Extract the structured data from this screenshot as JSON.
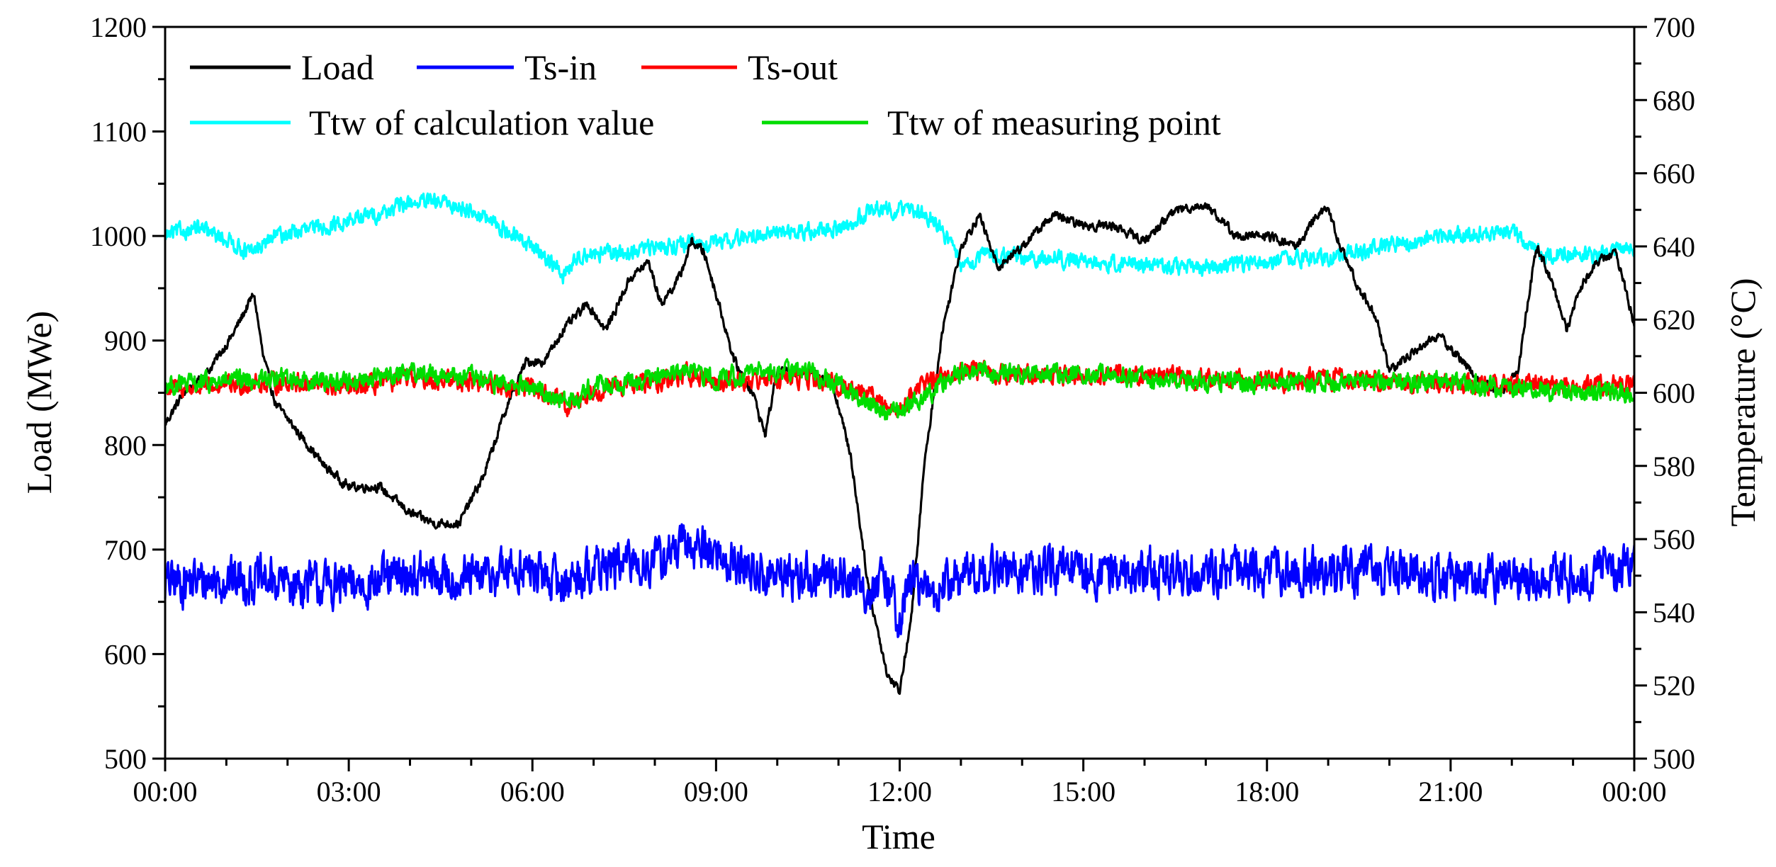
{
  "chart_data": {
    "type": "line",
    "title": "",
    "xlabel": "Time",
    "ylabel_left": "Load (MWe)",
    "ylabel_right": "Temperature (°C)",
    "xlim_hours": [
      0,
      24
    ],
    "ylim_left": [
      500,
      1200
    ],
    "ylim_right": [
      500,
      700
    ],
    "x_ticks": [
      0,
      3,
      6,
      9,
      12,
      15,
      18,
      21,
      24
    ],
    "x_tick_labels": [
      "00:00",
      "03:00",
      "06:00",
      "09:00",
      "12:00",
      "15:00",
      "18:00",
      "21:00",
      "00:00"
    ],
    "y_left_ticks": [
      500,
      600,
      700,
      800,
      900,
      1000,
      1100,
      1200
    ],
    "y_left_tick_labels": [
      "500",
      "600",
      "700",
      "800",
      "900",
      "1000",
      "1100",
      "1200"
    ],
    "y_right_ticks": [
      500,
      520,
      540,
      560,
      580,
      600,
      620,
      640,
      660,
      680,
      700
    ],
    "y_right_tick_labels": [
      "500",
      "520",
      "540",
      "560",
      "580",
      "600",
      "620",
      "640",
      "660",
      "680",
      "700"
    ],
    "legend_position": "top-left",
    "series": [
      {
        "name": "Load",
        "axis": "left",
        "color": "#000000",
        "noise": 5,
        "x": [
          0,
          0.3,
          0.7,
          1.1,
          1.45,
          1.6,
          1.8,
          2.2,
          2.6,
          3.0,
          3.5,
          4.0,
          4.4,
          4.8,
          5.2,
          5.6,
          5.9,
          6.2,
          6.5,
          6.9,
          7.2,
          7.6,
          7.9,
          8.1,
          8.4,
          8.6,
          8.8,
          9.0,
          9.3,
          9.6,
          9.8,
          10.0,
          10.3,
          10.6,
          10.9,
          11.2,
          11.5,
          11.8,
          12.0,
          12.2,
          12.4,
          12.7,
          13.0,
          13.3,
          13.6,
          14.0,
          14.5,
          15.0,
          15.5,
          16.0,
          16.5,
          17.0,
          17.5,
          18.0,
          18.5,
          18.8,
          19.0,
          19.2,
          19.5,
          19.8,
          20.0,
          20.4,
          20.8,
          21.2,
          21.5,
          21.8,
          22.1,
          22.4,
          22.6,
          22.9,
          23.1,
          23.4,
          23.7,
          24.0
        ],
        "values": [
          820,
          850,
          870,
          905,
          945,
          885,
          840,
          810,
          780,
          760,
          760,
          735,
          725,
          725,
          770,
          840,
          880,
          880,
          910,
          935,
          910,
          960,
          975,
          935,
          960,
          995,
          985,
          945,
          880,
          850,
          810,
          870,
          870,
          870,
          860,
          790,
          660,
          580,
          565,
          640,
          780,
          910,
          990,
          1020,
          970,
          990,
          1020,
          1010,
          1010,
          995,
          1025,
          1030,
          1000,
          1000,
          990,
          1020,
          1025,
          990,
          950,
          920,
          870,
          890,
          905,
          880,
          860,
          850,
          870,
          990,
          965,
          910,
          950,
          975,
          985,
          915
        ]
      },
      {
        "name": "Ts-in",
        "axis": "right",
        "color": "#0000ff",
        "noise": 7,
        "x": [
          0,
          1.0,
          2.0,
          3.0,
          4.0,
          5.0,
          5.8,
          6.5,
          7.0,
          8.0,
          8.5,
          8.8,
          9.2,
          9.8,
          10.5,
          11.0,
          11.5,
          11.8,
          12.0,
          12.2,
          12.5,
          12.8,
          13.2,
          14.0,
          15.0,
          16.0,
          17.0,
          18.0,
          19.0,
          20.0,
          21.0,
          22.0,
          23.0,
          24.0
        ],
        "values": [
          548,
          549,
          548,
          547,
          550,
          549,
          552,
          548,
          552,
          554,
          558,
          558,
          554,
          550,
          550,
          550,
          546,
          548,
          538,
          550,
          544,
          548,
          551,
          551,
          551,
          551,
          551,
          551,
          551,
          551,
          550,
          549,
          550,
          553
        ]
      },
      {
        "name": "Ts-out",
        "axis": "right",
        "color": "#ff0000",
        "noise": 3,
        "x": [
          0,
          1.0,
          2.0,
          3.0,
          4.0,
          5.0,
          6.0,
          6.4,
          6.6,
          7.0,
          8.0,
          8.5,
          9.0,
          10.0,
          10.5,
          11.0,
          11.5,
          11.7,
          12.0,
          12.3,
          12.6,
          13.0,
          14.0,
          15.0,
          16.0,
          17.0,
          18.0,
          19.0,
          20.0,
          21.0,
          22.0,
          23.0,
          24.0
        ],
        "values": [
          601,
          602,
          603,
          601,
          604,
          603,
          601,
          598,
          596,
          601,
          603,
          605,
          603,
          604,
          604,
          602,
          600,
          597,
          595,
          602,
          604,
          606,
          605,
          605,
          605,
          604,
          603,
          604,
          603,
          602,
          602,
          602,
          602
        ]
      },
      {
        "name": "Ttw of calculation value",
        "axis": "right",
        "color": "#00ffff",
        "noise": 2.5,
        "x": [
          0,
          0.5,
          1.0,
          1.4,
          1.8,
          2.5,
          3.0,
          3.5,
          4.0,
          4.5,
          5.0,
          5.5,
          6.0,
          6.3,
          6.5,
          6.8,
          7.5,
          8.0,
          9.0,
          10.0,
          10.5,
          11.0,
          11.3,
          11.6,
          11.9,
          12.2,
          12.5,
          12.8,
          13.0,
          13.4,
          14.0,
          15.0,
          16.0,
          17.0,
          18.0,
          19.0,
          20.0,
          21.0,
          22.0,
          22.3,
          22.6,
          23.0,
          23.5,
          24.0
        ],
        "values": [
          643,
          645,
          642,
          638,
          643,
          645,
          647,
          649,
          652,
          652,
          650,
          645,
          640,
          636,
          632,
          638,
          638,
          640,
          641,
          644,
          644,
          645,
          647,
          651,
          650,
          650,
          648,
          642,
          634,
          638,
          637,
          636,
          635,
          634,
          636,
          637,
          640,
          643,
          644,
          640,
          638,
          638,
          638,
          640
        ]
      },
      {
        "name": "Ttw of measuring point",
        "axis": "right",
        "color": "#00dd00",
        "noise": 3,
        "x": [
          0,
          1.0,
          2.0,
          3.0,
          4.0,
          5.0,
          6.0,
          6.4,
          6.6,
          7.0,
          8.0,
          8.5,
          9.0,
          10.0,
          10.5,
          11.0,
          11.5,
          11.8,
          12.0,
          12.4,
          12.7,
          13.0,
          14.0,
          15.0,
          16.0,
          17.0,
          18.0,
          19.0,
          20.0,
          21.0,
          22.0,
          23.0,
          24.0
        ],
        "values": [
          602,
          603,
          604,
          603,
          606,
          604,
          601,
          599,
          597,
          602,
          604,
          606,
          604,
          606,
          606,
          602,
          597,
          594,
          596,
          598,
          603,
          606,
          605,
          605,
          604,
          603,
          603,
          603,
          603,
          603,
          601,
          600,
          600
        ]
      }
    ]
  }
}
